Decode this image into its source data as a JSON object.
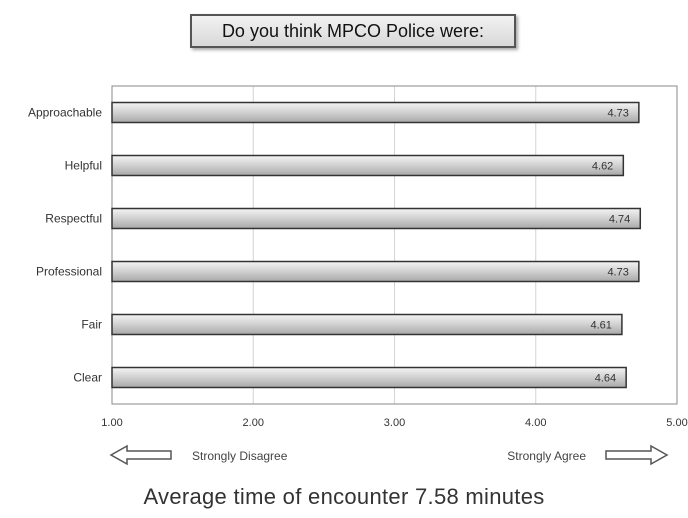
{
  "chart_data": {
    "type": "bar",
    "orientation": "horizontal",
    "title": "Do you think MPCO Police were:",
    "categories": [
      "Approachable",
      "Helpful",
      "Respectful",
      "Professional",
      "Fair",
      "Clear"
    ],
    "values": [
      4.73,
      4.62,
      4.74,
      4.73,
      4.61,
      4.64
    ],
    "value_labels": [
      "4.73",
      "4.62",
      "4.74",
      "4.73",
      "4.61",
      "4.64"
    ],
    "xlim": [
      1.0,
      5.0
    ],
    "xticks": [
      1.0,
      2.0,
      3.0,
      4.0,
      5.0
    ],
    "xtick_labels": [
      "1.00",
      "2.00",
      "3.00",
      "4.00",
      "5.00"
    ],
    "grid": "vertical",
    "scale_left_label": "Strongly Disagree",
    "scale_right_label": "Strongly Agree",
    "bar_color": "#cfcfcf"
  },
  "footer": {
    "text": "Average time of encounter 7.58 minutes"
  }
}
